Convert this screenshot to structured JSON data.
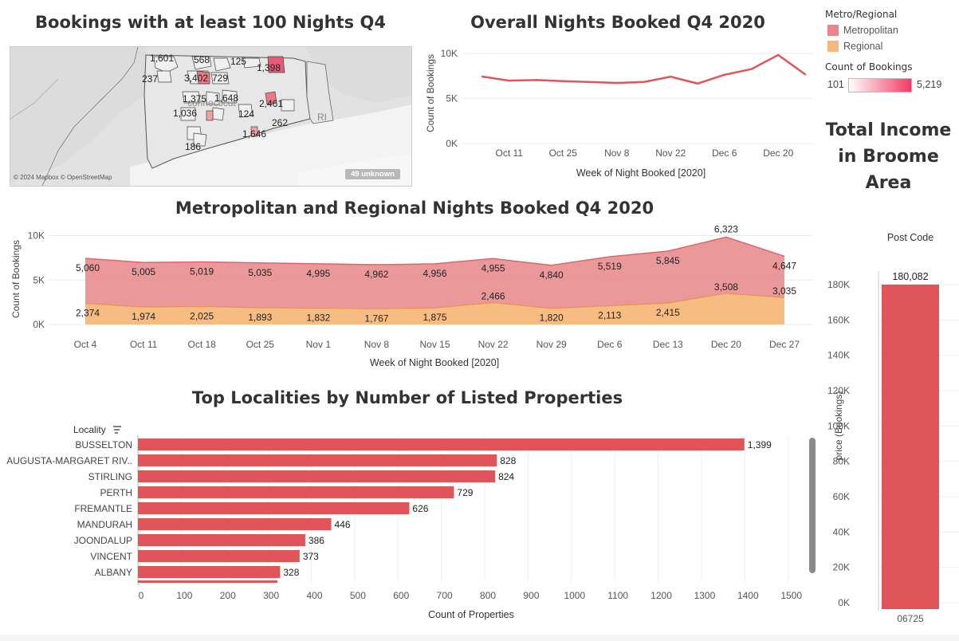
{
  "map": {
    "title": "Bookings with at least 100 Nights Q4",
    "state_label": "connecticut",
    "ri_label": "RI",
    "attribution": "© 2024 Mapbox © OpenStreetMap",
    "unknown_badge": "49 unknown",
    "markers": [
      "1,601",
      "568",
      "125",
      "237",
      "3,402",
      "729",
      "1,398",
      "1,375",
      "1,648",
      "2,461",
      "1,036",
      "124",
      "262",
      "1,646",
      "186"
    ]
  },
  "legend": {
    "color_title": "Metro/Regional",
    "metro_label": "Metropolitan",
    "regional_label": "Regional",
    "metro_color": "#e8868a",
    "regional_color": "#f5b87a",
    "count_title": "Count of Bookings",
    "count_min": "101",
    "count_max": "5,219"
  },
  "income": {
    "title_line1": "Total Income",
    "title_line2": "in Broome",
    "title_line3": "Area"
  },
  "chart_data": [
    {
      "type": "line",
      "title": "Overall Nights Booked Q4 2020",
      "xlabel": "Week of Night Booked [2020]",
      "ylabel": "Count of Bookings",
      "x_ticks": [
        "Oct 11",
        "Oct 25",
        "Nov 8",
        "Nov 22",
        "Dec 6",
        "Dec 20"
      ],
      "x": [
        "Oct 4",
        "Oct 11",
        "Oct 18",
        "Oct 25",
        "Nov 1",
        "Nov 8",
        "Nov 15",
        "Nov 22",
        "Nov 29",
        "Dec 6",
        "Dec 13",
        "Dec 20",
        "Dec 27"
      ],
      "values": [
        7434,
        6979,
        7044,
        6928,
        6827,
        6729,
        6831,
        7421,
        6660,
        7632,
        8260,
        9831,
        7682
      ],
      "y_ticks": [
        "0K",
        "5K",
        "10K"
      ],
      "ylim": [
        0,
        10800
      ],
      "color": "#e0555a"
    },
    {
      "type": "area",
      "title": "Metropolitan and Regional Nights Booked Q4 2020",
      "xlabel": "Week of Night Booked [2020]",
      "ylabel": "Count of Bookings",
      "categories": [
        "Oct 4",
        "Oct 11",
        "Oct 18",
        "Oct 25",
        "Nov 1",
        "Nov 8",
        "Nov 15",
        "Nov 22",
        "Nov 29",
        "Dec 6",
        "Dec 13",
        "Dec 20",
        "Dec 27"
      ],
      "series": [
        {
          "name": "Regional",
          "values": [
            2374,
            1974,
            2025,
            1893,
            1832,
            1767,
            1875,
            2466,
            1820,
            2113,
            2415,
            3508,
            3035
          ],
          "labels": [
            "2,374",
            "1,974",
            "2,025",
            "1,893",
            "1,832",
            "1,767",
            "1,875",
            "2,466",
            "1,820",
            "2,113",
            "2,415",
            "3,508",
            "3,035"
          ]
        },
        {
          "name": "Metropolitan",
          "values": [
            5060,
            5005,
            5019,
            5035,
            4995,
            4962,
            4956,
            4955,
            4840,
            5519,
            5845,
            6323,
            4647
          ],
          "labels": [
            "5,060",
            "5,005",
            "5,019",
            "5,035",
            "4,995",
            "4,962",
            "4,956",
            "4,955",
            "4,840",
            "5,519",
            "5,845",
            "6,323",
            "4,647"
          ]
        }
      ],
      "y_ticks": [
        "0K",
        "5K",
        "10K"
      ],
      "ylim": [
        0,
        10500
      ]
    },
    {
      "type": "bar",
      "title": "Top Localities by Number of Listed Properties",
      "axis_header": "Locality",
      "xlabel": "Count of Properties",
      "categories": [
        "BUSSELTON",
        "AUGUSTA-MARGARET RIV..",
        "STIRLING",
        "PERTH",
        "FREMANTLE",
        "MANDURAH",
        "JOONDALUP",
        "VINCENT",
        "ALBANY"
      ],
      "values": [
        1399,
        828,
        824,
        729,
        626,
        446,
        386,
        373,
        328
      ],
      "labels": [
        "1,399",
        "828",
        "824",
        "729",
        "626",
        "446",
        "386",
        "373",
        "328"
      ],
      "x_ticks": [
        "0",
        "100",
        "200",
        "300",
        "400",
        "500",
        "600",
        "700",
        "800",
        "900",
        "1000",
        "1100",
        "1200",
        "1300",
        "1400",
        "1500"
      ],
      "xlim": [
        0,
        1550
      ],
      "color": "#e0555a"
    },
    {
      "type": "bar",
      "header": "Post Code",
      "ylabel": "price (Bookings)",
      "categories": [
        "06725"
      ],
      "values": [
        180082
      ],
      "labels": [
        "180,082"
      ],
      "y_ticks": [
        "0K",
        "20K",
        "40K",
        "60K",
        "80K",
        "100K",
        "120K",
        "140K",
        "160K",
        "180K"
      ],
      "ylim": [
        0,
        185000
      ],
      "color": "#e0555a"
    }
  ]
}
